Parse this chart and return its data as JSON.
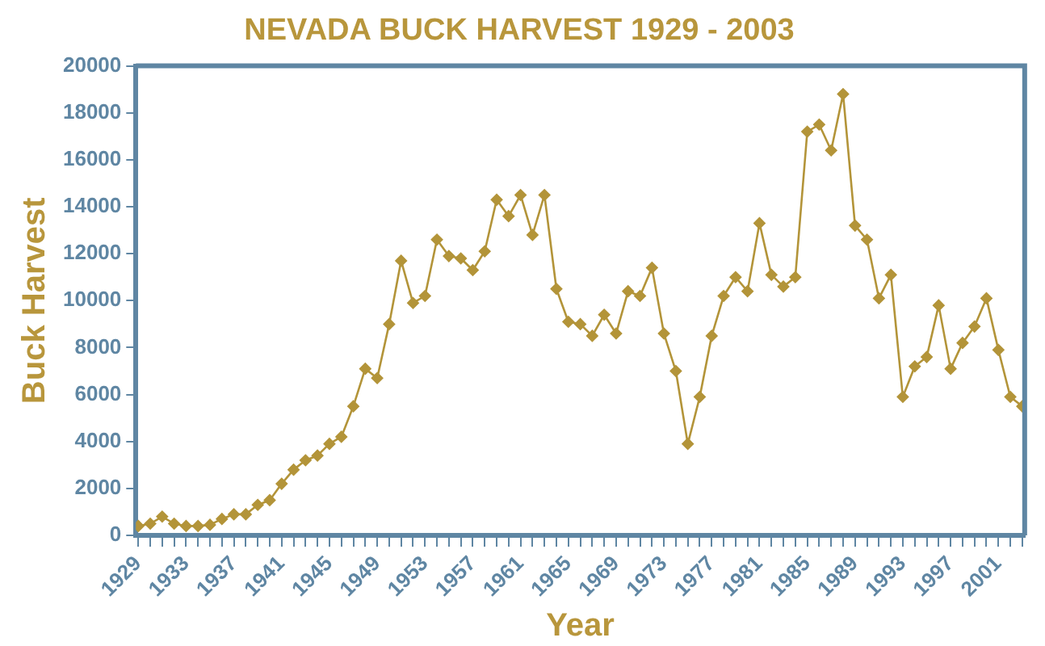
{
  "chart_data": {
    "type": "line",
    "title": "NEVADA BUCK HARVEST 1929 - 2003",
    "xlabel": "Year",
    "ylabel": "Buck Harvest",
    "x": [
      1929,
      1930,
      1931,
      1932,
      1933,
      1934,
      1935,
      1936,
      1937,
      1938,
      1939,
      1940,
      1941,
      1942,
      1943,
      1944,
      1945,
      1946,
      1947,
      1948,
      1949,
      1950,
      1951,
      1952,
      1953,
      1954,
      1955,
      1956,
      1957,
      1958,
      1959,
      1960,
      1961,
      1962,
      1963,
      1964,
      1965,
      1966,
      1967,
      1968,
      1969,
      1970,
      1971,
      1972,
      1973,
      1974,
      1975,
      1976,
      1977,
      1978,
      1979,
      1980,
      1981,
      1982,
      1983,
      1984,
      1985,
      1986,
      1987,
      1988,
      1989,
      1990,
      1991,
      1992,
      1993,
      1994,
      1995,
      1996,
      1997,
      1998,
      1999,
      2000,
      2001,
      2002,
      2003
    ],
    "series": [
      {
        "color": "#b39439",
        "values": [
          400,
          500,
          800,
          500,
          400,
          400,
          450,
          700,
          900,
          900,
          1300,
          1500,
          2200,
          2800,
          3200,
          3400,
          3900,
          4200,
          5500,
          7100,
          6700,
          9000,
          11700,
          9900,
          10200,
          12600,
          11900,
          11800,
          11300,
          12100,
          14300,
          13600,
          14500,
          12800,
          14500,
          10500,
          9100,
          9000,
          8500,
          9400,
          8600,
          10400,
          10200,
          11400,
          8600,
          7000,
          3900,
          5900,
          8500,
          10200,
          11000,
          10400,
          13300,
          11100,
          10600,
          11000,
          17200,
          17500,
          16400,
          18800,
          13200,
          12600,
          10100,
          11100,
          5900,
          7200,
          7600,
          9800,
          7100,
          8200,
          8900,
          10100,
          7900,
          5900,
          5500
        ]
      }
    ],
    "xlim": [
      1928.8,
      2003.2
    ],
    "xticks": [
      1929,
      {
        "value": 1930,
        "label": null
      },
      {
        "value": 1931,
        "label": null
      },
      {
        "value": 1932,
        "label": null
      },
      1933,
      {
        "value": 1934,
        "label": null
      },
      {
        "value": 1935,
        "label": null
      },
      {
        "value": 1936,
        "label": null
      },
      1937,
      {
        "value": 1938,
        "label": null
      },
      {
        "value": 1939,
        "label": null
      },
      {
        "value": 1940,
        "label": null
      },
      1941,
      {
        "value": 1942,
        "label": null
      },
      {
        "value": 1943,
        "label": null
      },
      {
        "value": 1944,
        "label": null
      },
      1945,
      {
        "value": 1946,
        "label": null
      },
      {
        "value": 1947,
        "label": null
      },
      {
        "value": 1948,
        "label": null
      },
      1949,
      {
        "value": 1950,
        "label": null
      },
      {
        "value": 1951,
        "label": null
      },
      {
        "value": 1952,
        "label": null
      },
      1953,
      {
        "value": 1954,
        "label": null
      },
      {
        "value": 1955,
        "label": null
      },
      {
        "value": 1956,
        "label": null
      },
      1957,
      {
        "value": 1958,
        "label": null
      },
      {
        "value": 1959,
        "label": null
      },
      {
        "value": 1960,
        "label": null
      },
      1961,
      {
        "value": 1962,
        "label": null
      },
      {
        "value": 1963,
        "label": null
      },
      {
        "value": 1964,
        "label": null
      },
      1965,
      {
        "value": 1966,
        "label": null
      },
      {
        "value": 1967,
        "label": null
      },
      {
        "value": 1968,
        "label": null
      },
      1969,
      {
        "value": 1970,
        "label": null
      },
      {
        "value": 1971,
        "label": null
      },
      {
        "value": 1972,
        "label": null
      },
      1973,
      {
        "value": 1974,
        "label": null
      },
      {
        "value": 1975,
        "label": null
      },
      {
        "value": 1976,
        "label": null
      },
      1977,
      {
        "value": 1978,
        "label": null
      },
      {
        "value": 1979,
        "label": null
      },
      {
        "value": 1980,
        "label": null
      },
      1981,
      {
        "value": 1982,
        "label": null
      },
      {
        "value": 1983,
        "label": null
      },
      {
        "value": 1984,
        "label": null
      },
      1985,
      {
        "value": 1986,
        "label": null
      },
      {
        "value": 1987,
        "label": null
      },
      {
        "value": 1988,
        "label": null
      },
      1989,
      {
        "value": 1990,
        "label": null
      },
      {
        "value": 1991,
        "label": null
      },
      {
        "value": 1992,
        "label": null
      },
      1993,
      {
        "value": 1994,
        "label": null
      },
      {
        "value": 1995,
        "label": null
      },
      {
        "value": 1996,
        "label": null
      },
      1997,
      {
        "value": 1998,
        "label": null
      },
      {
        "value": 1999,
        "label": null
      },
      {
        "value": 2000,
        "label": null
      },
      2001,
      {
        "value": 2002,
        "label": null
      },
      {
        "value": 2003,
        "label": null
      }
    ],
    "ylim": [
      0,
      20000
    ],
    "yticks": [
      0,
      2000,
      4000,
      6000,
      8000,
      10000,
      12000,
      14000,
      16000,
      18000,
      20000
    ],
    "grid": false,
    "legend": false,
    "marker": "diamond",
    "line_style": "solid"
  }
}
